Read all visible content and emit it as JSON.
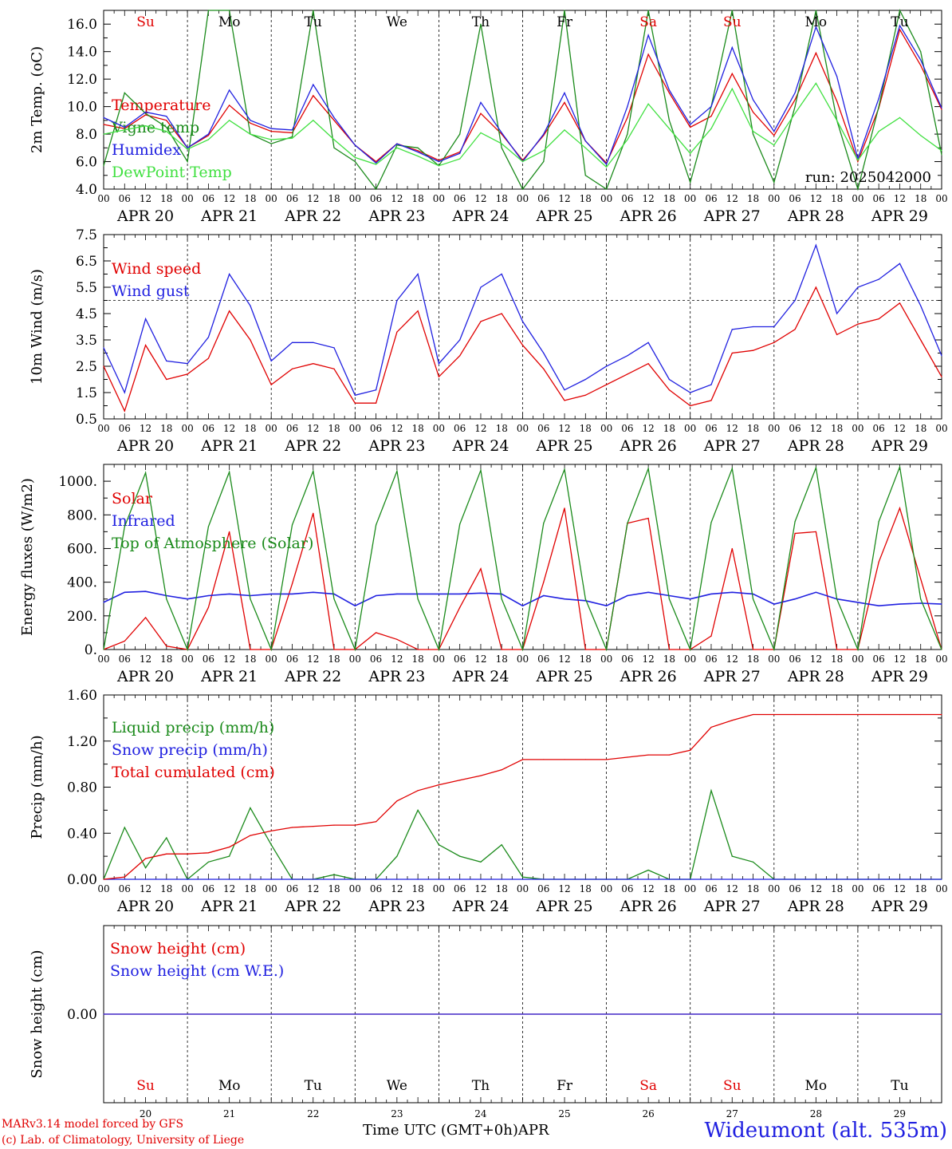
{
  "footer": {
    "model_line": "MARv3.14 model forced by GFS",
    "copyright_line": "(c) Lab. of Climatology, University of Liege",
    "time_label": "Time UTC (GMT+0h)",
    "month_label": "APR",
    "station": "Wideumont (alt. 535m)"
  },
  "hour_ticks": [
    "00",
    "06",
    "12",
    "18"
  ],
  "day_labels": [
    "APR 20",
    "APR 21",
    "APR 22",
    "APR 23",
    "APR 24",
    "APR 25",
    "APR 26",
    "APR 27",
    "APR 28",
    "APR 29"
  ],
  "weekdays": [
    {
      "label": "Su",
      "color": "#e00000"
    },
    {
      "label": "Mo",
      "color": "#000000"
    },
    {
      "label": "Tu",
      "color": "#000000"
    },
    {
      "label": "We",
      "color": "#000000"
    },
    {
      "label": "Th",
      "color": "#000000"
    },
    {
      "label": "Fr",
      "color": "#000000"
    },
    {
      "label": "Sa",
      "color": "#e00000"
    },
    {
      "label": "Su",
      "color": "#e00000"
    },
    {
      "label": "Mo",
      "color": "#000000"
    },
    {
      "label": "Tu",
      "color": "#000000"
    }
  ],
  "day_numbers": [
    "20",
    "21",
    "22",
    "23",
    "24",
    "25",
    "26",
    "27",
    "28",
    "29"
  ],
  "chart_data": [
    {
      "id": "temperature",
      "type": "line",
      "ylabel": "2m Temp. (oC)",
      "ylim": [
        4,
        17
      ],
      "yticks": [
        "4.0",
        "6.0",
        "8.0",
        "10.0",
        "12.0",
        "14.0",
        "16.0"
      ],
      "annotation": "run: 2025042000",
      "x_hours": [
        0,
        6,
        12,
        18,
        24,
        30,
        36,
        42,
        48,
        54,
        60,
        66,
        72,
        78,
        84,
        90,
        96,
        102,
        108,
        114,
        120,
        126,
        132,
        138,
        144,
        150,
        156,
        162,
        168,
        174,
        180,
        186,
        192,
        198,
        204,
        210,
        216,
        222,
        228,
        234,
        240
      ],
      "series": [
        {
          "name": "Temperature",
          "color": "#e00000",
          "values": [
            8.7,
            8.4,
            9.4,
            9.0,
            7.0,
            7.9,
            10.1,
            8.8,
            8.2,
            8.1,
            10.8,
            9.0,
            7.2,
            6.0,
            7.3,
            6.8,
            6.1,
            6.7,
            9.5,
            8.0,
            6.1,
            7.9,
            10.3,
            7.5,
            5.9,
            9.2,
            13.8,
            11.0,
            8.5,
            9.3,
            12.4,
            9.6,
            7.9,
            10.5,
            13.9,
            10.4,
            6.0,
            9.9,
            15.6,
            13.0,
            9.8
          ]
        },
        {
          "name": "Vigne temp",
          "color": "#1a8a1a",
          "values": [
            5.7,
            11.0,
            9.5,
            8.5,
            6.0,
            17.0,
            17.0,
            8.0,
            7.3,
            7.8,
            17.0,
            7.0,
            6.0,
            3.8,
            7.2,
            7.0,
            5.7,
            8.0,
            16.0,
            7.0,
            4.0,
            6.0,
            17.0,
            5.0,
            4.0,
            8.0,
            17.0,
            9.0,
            4.5,
            10.0,
            17.0,
            8.0,
            4.5,
            10.0,
            17.0,
            9.0,
            4.0,
            10.0,
            17.0,
            14.0,
            6.5
          ]
        },
        {
          "name": "Humidex",
          "color": "#2020e0",
          "values": [
            9.2,
            8.5,
            9.6,
            9.3,
            7.0,
            8.0,
            11.2,
            9.0,
            8.4,
            8.3,
            11.6,
            9.2,
            7.2,
            5.9,
            7.3,
            6.7,
            6.0,
            6.6,
            10.3,
            8.1,
            6.0,
            8.0,
            11.0,
            7.5,
            5.8,
            10.0,
            15.2,
            11.2,
            8.7,
            10.0,
            14.3,
            10.5,
            8.2,
            11.0,
            15.8,
            12.2,
            6.2,
            10.6,
            15.9,
            13.4,
            9.9
          ]
        },
        {
          "name": "DewPoint Temp",
          "color": "#40e040",
          "values": [
            8.0,
            8.3,
            8.6,
            8.2,
            6.9,
            7.6,
            9.0,
            8.0,
            7.6,
            7.7,
            9.0,
            7.6,
            6.3,
            5.8,
            7.0,
            6.4,
            5.7,
            6.2,
            8.1,
            7.3,
            6.0,
            6.8,
            8.3,
            7.0,
            5.6,
            7.6,
            10.2,
            8.4,
            6.6,
            8.4,
            11.3,
            8.2,
            7.2,
            9.5,
            11.7,
            9.0,
            6.1,
            8.2,
            9.2,
            7.9,
            6.8
          ]
        }
      ]
    },
    {
      "id": "wind",
      "type": "line",
      "ylabel": "10m Wind (m/s)",
      "ylim": [
        0.5,
        7.5
      ],
      "yticks": [
        "0.5",
        "1.5",
        "2.5",
        "3.5",
        "4.5",
        "5.5",
        "6.5",
        "7.5"
      ],
      "threshold": 5.0,
      "x_hours": [
        0,
        6,
        12,
        18,
        24,
        30,
        36,
        42,
        48,
        54,
        60,
        66,
        72,
        78,
        84,
        90,
        96,
        102,
        108,
        114,
        120,
        126,
        132,
        138,
        144,
        150,
        156,
        162,
        168,
        174,
        180,
        186,
        192,
        198,
        204,
        210,
        216,
        222,
        228,
        234,
        240
      ],
      "series": [
        {
          "name": "Wind speed",
          "color": "#e00000",
          "values": [
            2.5,
            0.8,
            3.3,
            2.0,
            2.2,
            2.8,
            4.6,
            3.5,
            1.8,
            2.4,
            2.6,
            2.4,
            1.1,
            1.1,
            3.8,
            4.6,
            2.1,
            2.9,
            4.2,
            4.5,
            3.3,
            2.4,
            1.2,
            1.4,
            1.8,
            2.2,
            2.6,
            1.6,
            1.0,
            1.2,
            3.0,
            3.1,
            3.4,
            3.9,
            5.5,
            3.7,
            4.1,
            4.3,
            4.9,
            3.5,
            2.1
          ]
        },
        {
          "name": "Wind gust",
          "color": "#2020e0",
          "values": [
            3.2,
            1.5,
            4.3,
            2.7,
            2.6,
            3.6,
            6.0,
            4.8,
            2.7,
            3.4,
            3.4,
            3.2,
            1.4,
            1.6,
            5.0,
            6.0,
            2.6,
            3.5,
            5.5,
            6.0,
            4.2,
            3.0,
            1.6,
            2.0,
            2.5,
            2.9,
            3.4,
            2.0,
            1.5,
            1.8,
            3.9,
            4.0,
            4.0,
            5.0,
            7.1,
            4.5,
            5.5,
            5.8,
            6.4,
            4.8,
            2.9
          ]
        }
      ]
    },
    {
      "id": "energy",
      "type": "line",
      "ylabel": "Energy fluxes (W/m2)",
      "ylim": [
        0,
        1100
      ],
      "yticks": [
        "0.",
        "200.",
        "400.",
        "600.",
        "800.",
        "1000."
      ],
      "x_hours": [
        0,
        6,
        12,
        18,
        24,
        30,
        36,
        42,
        48,
        54,
        60,
        66,
        72,
        78,
        84,
        90,
        96,
        102,
        108,
        114,
        120,
        126,
        132,
        138,
        144,
        150,
        156,
        162,
        168,
        174,
        180,
        186,
        192,
        198,
        204,
        210,
        216,
        222,
        228,
        234,
        240
      ],
      "series": [
        {
          "name": "Solar",
          "color": "#e00000",
          "values": [
            0,
            50,
            190,
            20,
            0,
            250,
            700,
            0,
            0,
            390,
            810,
            0,
            0,
            100,
            60,
            0,
            0,
            250,
            480,
            0,
            0,
            400,
            840,
            0,
            0,
            750,
            780,
            0,
            0,
            80,
            600,
            0,
            0,
            690,
            700,
            0,
            0,
            520,
            840,
            420,
            0
          ]
        },
        {
          "name": "Infrared",
          "color": "#2020e0",
          "values": [
            280,
            340,
            345,
            320,
            300,
            320,
            330,
            320,
            330,
            330,
            340,
            330,
            260,
            320,
            330,
            330,
            330,
            330,
            335,
            330,
            260,
            320,
            300,
            290,
            260,
            320,
            340,
            320,
            300,
            330,
            340,
            330,
            270,
            300,
            340,
            300,
            280,
            260,
            270,
            275,
            270
          ]
        },
        {
          "name": "Top of Atmosphere (Solar)",
          "color": "#1a8a1a",
          "values": [
            0,
            730,
            1050,
            300,
            0,
            730,
            1055,
            300,
            0,
            740,
            1060,
            300,
            0,
            740,
            1060,
            300,
            0,
            745,
            1065,
            300,
            0,
            750,
            1070,
            300,
            0,
            750,
            1075,
            300,
            0,
            755,
            1075,
            300,
            0,
            760,
            1080,
            300,
            0,
            760,
            1085,
            300,
            0
          ]
        }
      ]
    },
    {
      "id": "precip",
      "type": "line",
      "ylabel": "Precip (mm/h)",
      "ylim": [
        0,
        1.6
      ],
      "yticks": [
        "0.00",
        "0.40",
        "0.80",
        "1.20",
        "1.60"
      ],
      "x_hours": [
        0,
        6,
        12,
        18,
        24,
        30,
        36,
        42,
        48,
        54,
        60,
        66,
        72,
        78,
        84,
        90,
        96,
        102,
        108,
        114,
        120,
        126,
        132,
        138,
        144,
        150,
        156,
        162,
        168,
        174,
        180,
        186,
        192,
        198,
        204,
        210,
        216,
        222,
        228,
        234,
        240
      ],
      "series": [
        {
          "name": "Liquid precip (mm/h)",
          "color": "#1a8a1a",
          "values": [
            0,
            0.45,
            0.1,
            0.36,
            0,
            0.15,
            0.2,
            0.62,
            0.3,
            0,
            0,
            0.04,
            0,
            0,
            0.2,
            0.6,
            0.3,
            0.2,
            0.15,
            0.3,
            0.02,
            0,
            0,
            0,
            0,
            0,
            0.08,
            0,
            0,
            0.77,
            0.2,
            0.15,
            0,
            0,
            0,
            0,
            0,
            0,
            0,
            0,
            0
          ]
        },
        {
          "name": "Snow precip (mm/h)",
          "color": "#2020e0",
          "values": [
            0,
            0,
            0,
            0,
            0,
            0,
            0,
            0,
            0,
            0,
            0,
            0,
            0,
            0,
            0,
            0,
            0,
            0,
            0,
            0,
            0,
            0,
            0,
            0,
            0,
            0,
            0,
            0,
            0,
            0,
            0,
            0,
            0,
            0,
            0,
            0,
            0,
            0,
            0,
            0,
            0
          ]
        },
        {
          "name": "Total cumulated (cm)",
          "color": "#e00000",
          "values": [
            0,
            0.02,
            0.18,
            0.22,
            0.22,
            0.23,
            0.28,
            0.38,
            0.42,
            0.45,
            0.46,
            0.47,
            0.47,
            0.5,
            0.68,
            0.77,
            0.82,
            0.86,
            0.9,
            0.95,
            1.04,
            1.04,
            1.04,
            1.04,
            1.04,
            1.06,
            1.08,
            1.08,
            1.12,
            1.32,
            1.38,
            1.43,
            1.43,
            1.43,
            1.43,
            1.43,
            1.43,
            1.43,
            1.43,
            1.43,
            1.43
          ]
        }
      ]
    },
    {
      "id": "snow",
      "type": "line",
      "ylabel": "Snow height (cm)",
      "ylim": [
        -1,
        1
      ],
      "yticks": [
        "0.00"
      ],
      "x_hours": [
        0,
        240
      ],
      "series": [
        {
          "name": "Snow height (cm)",
          "color": "#e00000",
          "values": [
            0,
            0
          ]
        },
        {
          "name": "Snow height (cm W.E.)",
          "color": "#2020e0",
          "values": [
            0,
            0
          ]
        }
      ]
    }
  ]
}
